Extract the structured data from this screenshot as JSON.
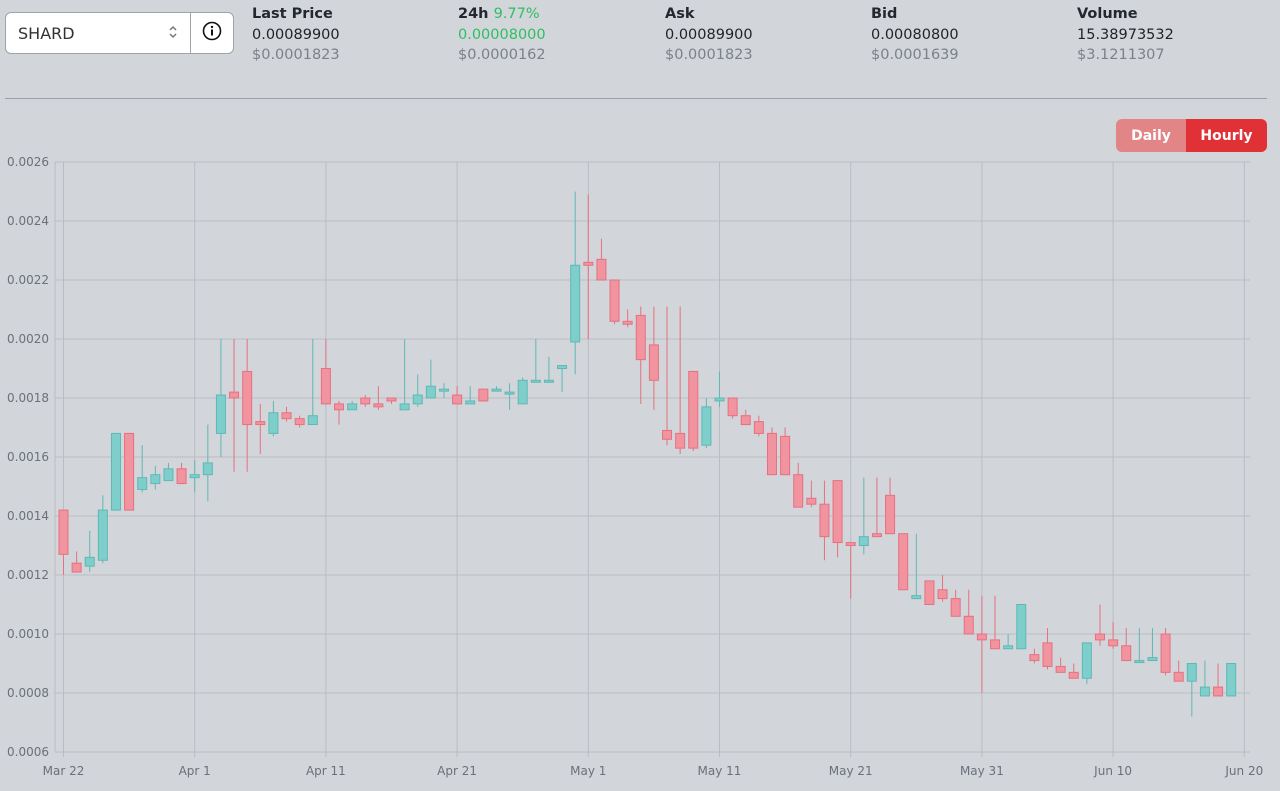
{
  "selector": {
    "value": "SHARD",
    "chevron_icon": "up-down-chevron-icon",
    "info_icon": "info-circle-icon"
  },
  "stats": {
    "last_price": {
      "label": "Last Price",
      "value": "0.00089900",
      "usd": "$0.0001823"
    },
    "change_24h": {
      "label": "24h",
      "percent": "9.77%",
      "value": "0.00008000",
      "usd": "$0.0000162",
      "color": "#2fbf62"
    },
    "ask": {
      "label": "Ask",
      "value": "0.00089900",
      "usd": "$0.0001823"
    },
    "bid": {
      "label": "Bid",
      "value": "0.00080800",
      "usd": "$0.0001639"
    },
    "volume": {
      "label": "Volume",
      "value": "15.38973532",
      "usd": "$3.1211307"
    }
  },
  "toggle": {
    "daily": "Daily",
    "hourly": "Hourly",
    "active": "Hourly"
  },
  "chart_data": {
    "type": "candlestick",
    "ylim": [
      0.0006,
      0.0026
    ],
    "yticks": [
      "0.0006",
      "0.0008",
      "0.0010",
      "0.0012",
      "0.0014",
      "0.0016",
      "0.0018",
      "0.0020",
      "0.0022",
      "0.0024",
      "0.0026"
    ],
    "xticks": [
      {
        "label": "Mar 22",
        "day": 0
      },
      {
        "label": "Apr 1",
        "day": 10
      },
      {
        "label": "Apr 11",
        "day": 20
      },
      {
        "label": "Apr 21",
        "day": 30
      },
      {
        "label": "May 1",
        "day": 40
      },
      {
        "label": "May 11",
        "day": 50
      },
      {
        "label": "May 21",
        "day": 60
      },
      {
        "label": "May 31",
        "day": 70
      },
      {
        "label": "Jun 10",
        "day": 80
      },
      {
        "label": "Jun 20",
        "day": 90
      }
    ],
    "grid": true,
    "up_color": "#7ecfcc",
    "down_color": "#f1949f",
    "candles": [
      {
        "day": 0,
        "o": 0.00142,
        "h": 0.00142,
        "l": 0.0012,
        "c": 0.00127
      },
      {
        "day": 1,
        "o": 0.00124,
        "h": 0.00128,
        "l": 0.00121,
        "c": 0.00121
      },
      {
        "day": 2,
        "o": 0.00123,
        "h": 0.00135,
        "l": 0.00121,
        "c": 0.00126
      },
      {
        "day": 3,
        "o": 0.00125,
        "h": 0.00147,
        "l": 0.00124,
        "c": 0.00142
      },
      {
        "day": 4,
        "o": 0.00142,
        "h": 0.00168,
        "l": 0.00142,
        "c": 0.00168
      },
      {
        "day": 5,
        "o": 0.00168,
        "h": 0.00168,
        "l": 0.00142,
        "c": 0.00142
      },
      {
        "day": 6,
        "o": 0.00149,
        "h": 0.00164,
        "l": 0.00148,
        "c": 0.00153
      },
      {
        "day": 7,
        "o": 0.00151,
        "h": 0.00157,
        "l": 0.00149,
        "c": 0.00154
      },
      {
        "day": 8,
        "o": 0.00152,
        "h": 0.00158,
        "l": 0.00152,
        "c": 0.00156
      },
      {
        "day": 9,
        "o": 0.00156,
        "h": 0.00158,
        "l": 0.00151,
        "c": 0.00151
      },
      {
        "day": 10,
        "o": 0.00153,
        "h": 0.00159,
        "l": 0.00148,
        "c": 0.00154
      },
      {
        "day": 11,
        "o": 0.00154,
        "h": 0.00171,
        "l": 0.00145,
        "c": 0.00158
      },
      {
        "day": 12,
        "o": 0.00168,
        "h": 0.002,
        "l": 0.0016,
        "c": 0.00181
      },
      {
        "day": 13,
        "o": 0.00182,
        "h": 0.002,
        "l": 0.00155,
        "c": 0.0018
      },
      {
        "day": 14,
        "o": 0.00189,
        "h": 0.002,
        "l": 0.00155,
        "c": 0.00171
      },
      {
        "day": 15,
        "o": 0.00172,
        "h": 0.00178,
        "l": 0.00161,
        "c": 0.00171
      },
      {
        "day": 16,
        "o": 0.00168,
        "h": 0.00179,
        "l": 0.00167,
        "c": 0.00175
      },
      {
        "day": 17,
        "o": 0.00175,
        "h": 0.00177,
        "l": 0.00172,
        "c": 0.00173
      },
      {
        "day": 18,
        "o": 0.00173,
        "h": 0.00174,
        "l": 0.0017,
        "c": 0.00171
      },
      {
        "day": 19,
        "o": 0.00171,
        "h": 0.002,
        "l": 0.00171,
        "c": 0.00174
      },
      {
        "day": 20,
        "o": 0.0019,
        "h": 0.002,
        "l": 0.00178,
        "c": 0.00178
      },
      {
        "day": 21,
        "o": 0.00178,
        "h": 0.00179,
        "l": 0.00171,
        "c": 0.00176
      },
      {
        "day": 22,
        "o": 0.00176,
        "h": 0.00179,
        "l": 0.00176,
        "c": 0.00178
      },
      {
        "day": 23,
        "o": 0.0018,
        "h": 0.00181,
        "l": 0.00177,
        "c": 0.00178
      },
      {
        "day": 24,
        "o": 0.00178,
        "h": 0.00184,
        "l": 0.00176,
        "c": 0.00177
      },
      {
        "day": 25,
        "o": 0.0018,
        "h": 0.0018,
        "l": 0.00178,
        "c": 0.00179
      },
      {
        "day": 26,
        "o": 0.00176,
        "h": 0.002,
        "l": 0.00176,
        "c": 0.00178
      },
      {
        "day": 27,
        "o": 0.00178,
        "h": 0.00188,
        "l": 0.00177,
        "c": 0.00181
      },
      {
        "day": 28,
        "o": 0.0018,
        "h": 0.00193,
        "l": 0.0018,
        "c": 0.00184
      },
      {
        "day": 29,
        "o": 0.00183,
        "h": 0.00185,
        "l": 0.0018,
        "c": 0.00183
      },
      {
        "day": 30,
        "o": 0.00181,
        "h": 0.00184,
        "l": 0.00178,
        "c": 0.00178
      },
      {
        "day": 31,
        "o": 0.00178,
        "h": 0.00184,
        "l": 0.00178,
        "c": 0.00179
      },
      {
        "day": 32,
        "o": 0.00183,
        "h": 0.00183,
        "l": 0.00179,
        "c": 0.00179
      },
      {
        "day": 33,
        "o": 0.00183,
        "h": 0.00184,
        "l": 0.00183,
        "c": 0.00183
      },
      {
        "day": 34,
        "o": 0.00182,
        "h": 0.00185,
        "l": 0.00176,
        "c": 0.00182
      },
      {
        "day": 35,
        "o": 0.00178,
        "h": 0.00187,
        "l": 0.00178,
        "c": 0.00186
      },
      {
        "day": 36,
        "o": 0.00186,
        "h": 0.002,
        "l": 0.00186,
        "c": 0.00186
      },
      {
        "day": 37,
        "o": 0.00186,
        "h": 0.00194,
        "l": 0.00186,
        "c": 0.00186
      },
      {
        "day": 38,
        "o": 0.0019,
        "h": 0.00191,
        "l": 0.00182,
        "c": 0.00191
      },
      {
        "day": 39,
        "o": 0.00199,
        "h": 0.0025,
        "l": 0.00188,
        "c": 0.00225
      },
      {
        "day": 40,
        "o": 0.00226,
        "h": 0.00249,
        "l": 0.002,
        "c": 0.00225
      },
      {
        "day": 41,
        "o": 0.00227,
        "h": 0.00234,
        "l": 0.0022,
        "c": 0.0022
      },
      {
        "day": 42,
        "o": 0.0022,
        "h": 0.0022,
        "l": 0.00205,
        "c": 0.00206
      },
      {
        "day": 43,
        "o": 0.00206,
        "h": 0.0021,
        "l": 0.00204,
        "c": 0.00205
      },
      {
        "day": 44,
        "o": 0.00208,
        "h": 0.00211,
        "l": 0.00178,
        "c": 0.00193
      },
      {
        "day": 45,
        "o": 0.00198,
        "h": 0.00211,
        "l": 0.00176,
        "c": 0.00186
      },
      {
        "day": 46,
        "o": 0.00169,
        "h": 0.00211,
        "l": 0.00164,
        "c": 0.00166
      },
      {
        "day": 47,
        "o": 0.00168,
        "h": 0.00211,
        "l": 0.00161,
        "c": 0.00163
      },
      {
        "day": 48,
        "o": 0.00189,
        "h": 0.00189,
        "l": 0.00162,
        "c": 0.00163
      },
      {
        "day": 49,
        "o": 0.00164,
        "h": 0.0018,
        "l": 0.00163,
        "c": 0.00177
      },
      {
        "day": 50,
        "o": 0.00179,
        "h": 0.00189,
        "l": 0.00177,
        "c": 0.0018
      },
      {
        "day": 51,
        "o": 0.0018,
        "h": 0.0018,
        "l": 0.00173,
        "c": 0.00174
      },
      {
        "day": 52,
        "o": 0.00174,
        "h": 0.00176,
        "l": 0.00171,
        "c": 0.00171
      },
      {
        "day": 53,
        "o": 0.00172,
        "h": 0.00174,
        "l": 0.00167,
        "c": 0.00168
      },
      {
        "day": 54,
        "o": 0.00168,
        "h": 0.0017,
        "l": 0.00154,
        "c": 0.00154
      },
      {
        "day": 55,
        "o": 0.00167,
        "h": 0.0017,
        "l": 0.00154,
        "c": 0.00154
      },
      {
        "day": 56,
        "o": 0.00154,
        "h": 0.00158,
        "l": 0.00143,
        "c": 0.00143
      },
      {
        "day": 57,
        "o": 0.00146,
        "h": 0.00152,
        "l": 0.00143,
        "c": 0.00144
      },
      {
        "day": 58,
        "o": 0.00144,
        "h": 0.00152,
        "l": 0.00125,
        "c": 0.00133
      },
      {
        "day": 59,
        "o": 0.00152,
        "h": 0.00152,
        "l": 0.00126,
        "c": 0.00131
      },
      {
        "day": 60,
        "o": 0.00131,
        "h": 0.00131,
        "l": 0.00112,
        "c": 0.0013
      },
      {
        "day": 61,
        "o": 0.0013,
        "h": 0.00153,
        "l": 0.00127,
        "c": 0.00133
      },
      {
        "day": 62,
        "o": 0.00134,
        "h": 0.00153,
        "l": 0.00133,
        "c": 0.00133
      },
      {
        "day": 63,
        "o": 0.00147,
        "h": 0.00153,
        "l": 0.00134,
        "c": 0.00134
      },
      {
        "day": 64,
        "o": 0.00134,
        "h": 0.00134,
        "l": 0.00115,
        "c": 0.00115
      },
      {
        "day": 65,
        "o": 0.00112,
        "h": 0.00134,
        "l": 0.00112,
        "c": 0.00113
      },
      {
        "day": 66,
        "o": 0.00118,
        "h": 0.00118,
        "l": 0.0011,
        "c": 0.0011
      },
      {
        "day": 67,
        "o": 0.00115,
        "h": 0.0012,
        "l": 0.00111,
        "c": 0.00112
      },
      {
        "day": 68,
        "o": 0.00112,
        "h": 0.00115,
        "l": 0.00106,
        "c": 0.00106
      },
      {
        "day": 69,
        "o": 0.00106,
        "h": 0.00115,
        "l": 0.001,
        "c": 0.001
      },
      {
        "day": 70,
        "o": 0.001,
        "h": 0.00113,
        "l": 0.0008,
        "c": 0.00098
      },
      {
        "day": 71,
        "o": 0.00098,
        "h": 0.00113,
        "l": 0.00095,
        "c": 0.00095
      },
      {
        "day": 72,
        "o": 0.00095,
        "h": 0.001,
        "l": 0.00095,
        "c": 0.00096
      },
      {
        "day": 73,
        "o": 0.00095,
        "h": 0.0011,
        "l": 0.00095,
        "c": 0.0011
      },
      {
        "day": 74,
        "o": 0.00093,
        "h": 0.00095,
        "l": 0.0009,
        "c": 0.00091
      },
      {
        "day": 75,
        "o": 0.00097,
        "h": 0.00102,
        "l": 0.00088,
        "c": 0.00089
      },
      {
        "day": 76,
        "o": 0.00089,
        "h": 0.00092,
        "l": 0.00087,
        "c": 0.00087
      },
      {
        "day": 77,
        "o": 0.00087,
        "h": 0.0009,
        "l": 0.00085,
        "c": 0.00085
      },
      {
        "day": 78,
        "o": 0.00085,
        "h": 0.00097,
        "l": 0.00083,
        "c": 0.00097
      },
      {
        "day": 79,
        "o": 0.001,
        "h": 0.0011,
        "l": 0.00096,
        "c": 0.00098
      },
      {
        "day": 80,
        "o": 0.00098,
        "h": 0.00104,
        "l": 0.00095,
        "c": 0.00096
      },
      {
        "day": 81,
        "o": 0.00096,
        "h": 0.00102,
        "l": 0.00091,
        "c": 0.00091
      },
      {
        "day": 82,
        "o": 0.00091,
        "h": 0.00102,
        "l": 0.00091,
        "c": 0.00091
      },
      {
        "day": 83,
        "o": 0.00091,
        "h": 0.00102,
        "l": 0.00091,
        "c": 0.00092
      },
      {
        "day": 84,
        "o": 0.001,
        "h": 0.00102,
        "l": 0.00086,
        "c": 0.00087
      },
      {
        "day": 85,
        "o": 0.00087,
        "h": 0.00091,
        "l": 0.00084,
        "c": 0.00084
      },
      {
        "day": 86,
        "o": 0.00084,
        "h": 0.0009,
        "l": 0.00072,
        "c": 0.0009
      },
      {
        "day": 87,
        "o": 0.00079,
        "h": 0.00091,
        "l": 0.00079,
        "c": 0.00082
      },
      {
        "day": 88,
        "o": 0.00082,
        "h": 0.0009,
        "l": 0.00079,
        "c": 0.00079
      },
      {
        "day": 89,
        "o": 0.00079,
        "h": 0.0009,
        "l": 0.00079,
        "c": 0.0009
      }
    ]
  }
}
